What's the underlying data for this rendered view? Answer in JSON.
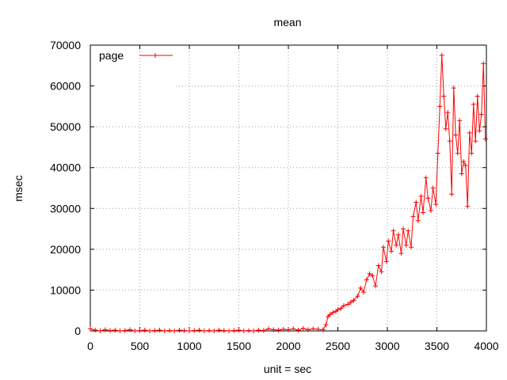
{
  "chart_data": {
    "type": "line",
    "title": "mean",
    "xlabel": "unit = sec",
    "ylabel": "msec",
    "xlim": [
      0,
      4000
    ],
    "ylim": [
      0,
      70000
    ],
    "xticks": [
      0,
      500,
      1000,
      1500,
      2000,
      2500,
      3000,
      3500,
      4000
    ],
    "yticks": [
      0,
      10000,
      20000,
      30000,
      40000,
      50000,
      60000,
      70000
    ],
    "grid": true,
    "legend_position": "top-left",
    "series": [
      {
        "name": "page",
        "color": "#ff0000",
        "marker": "plus",
        "x": [
          0,
          50,
          100,
          150,
          200,
          250,
          300,
          350,
          400,
          450,
          500,
          550,
          600,
          650,
          700,
          750,
          800,
          850,
          900,
          950,
          1000,
          1050,
          1100,
          1150,
          1200,
          1250,
          1300,
          1350,
          1400,
          1450,
          1500,
          1550,
          1600,
          1650,
          1700,
          1750,
          1800,
          1850,
          1900,
          1950,
          2000,
          2050,
          2100,
          2150,
          2200,
          2250,
          2300,
          2350,
          2380,
          2400,
          2420,
          2450,
          2480,
          2500,
          2530,
          2560,
          2600,
          2630,
          2660,
          2700,
          2730,
          2760,
          2790,
          2820,
          2850,
          2880,
          2910,
          2940,
          2960,
          2990,
          3010,
          3040,
          3060,
          3090,
          3110,
          3140,
          3160,
          3190,
          3210,
          3240,
          3260,
          3290,
          3310,
          3340,
          3360,
          3390,
          3410,
          3440,
          3460,
          3490,
          3510,
          3530,
          3550,
          3570,
          3590,
          3610,
          3630,
          3650,
          3670,
          3690,
          3710,
          3730,
          3750,
          3770,
          3790,
          3810,
          3830,
          3850,
          3870,
          3890,
          3910,
          3930,
          3950,
          3970,
          3990
        ],
        "y": [
          500,
          200,
          0,
          300,
          100,
          200,
          0,
          100,
          300,
          0,
          100,
          200,
          0,
          100,
          200,
          0,
          100,
          0,
          200,
          100,
          0,
          100,
          200,
          0,
          100,
          0,
          200,
          100,
          0,
          100,
          200,
          0,
          100,
          0,
          200,
          100,
          500,
          300,
          200,
          400,
          300,
          500,
          200,
          600,
          300,
          500,
          400,
          300,
          1500,
          3500,
          4000,
          4500,
          4800,
          5200,
          5500,
          6200,
          6500,
          7000,
          7500,
          8500,
          10500,
          9500,
          12500,
          14000,
          13500,
          11000,
          16000,
          14500,
          20500,
          17000,
          22000,
          19500,
          24500,
          21000,
          23500,
          19000,
          25000,
          21000,
          24500,
          20500,
          28000,
          31500,
          27000,
          33000,
          29000,
          37500,
          32500,
          29500,
          35000,
          31000,
          43500,
          55000,
          67500,
          57500,
          49500,
          53500,
          46500,
          33500,
          59500,
          48000,
          43500,
          51500,
          38500,
          41500,
          40500,
          30500,
          48500,
          43500,
          55500,
          46500,
          57500,
          49000,
          53000,
          65500,
          47000
        ]
      }
    ]
  }
}
